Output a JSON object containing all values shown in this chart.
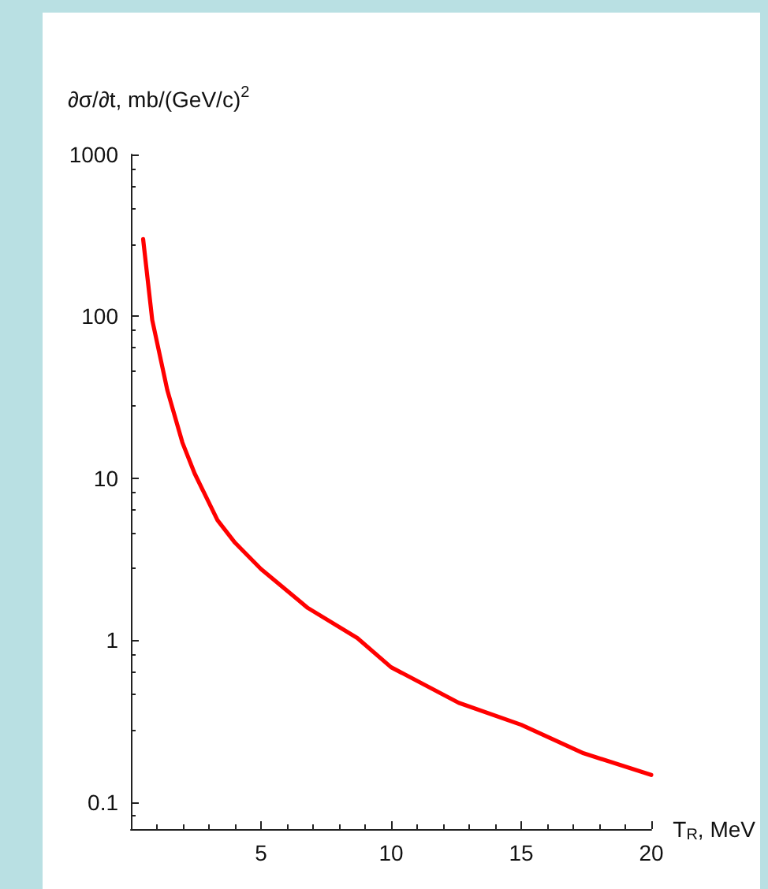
{
  "chart_data": {
    "type": "line",
    "ylabel": "∂σ/∂t, mb/(GeV/c)$^{2}$",
    "xlabel": "T$_{R}$, MeV",
    "log": "y",
    "grid": false,
    "marker": "none",
    "line_style": "solid",
    "xlim": [
      0,
      20
    ],
    "xticks": [
      5,
      10,
      15,
      20
    ],
    "ylim": [
      0.068,
      1000
    ],
    "yticks": [
      0.1,
      1,
      10,
      100,
      1000
    ],
    "series": [
      {
        "color": "#ff0000",
        "x": [
          0.47,
          0.82,
          1.4,
          1.98,
          2.45,
          3.33,
          4,
          5,
          6.8,
          8.7,
          10,
          12.6,
          15,
          17.4,
          20
        ],
        "values": [
          300,
          95,
          35,
          16.6,
          10.7,
          5.5,
          4,
          2.75,
          1.58,
          1.03,
          0.68,
          0.41,
          0.3,
          0.2,
          0.147
        ]
      }
    ]
  }
}
